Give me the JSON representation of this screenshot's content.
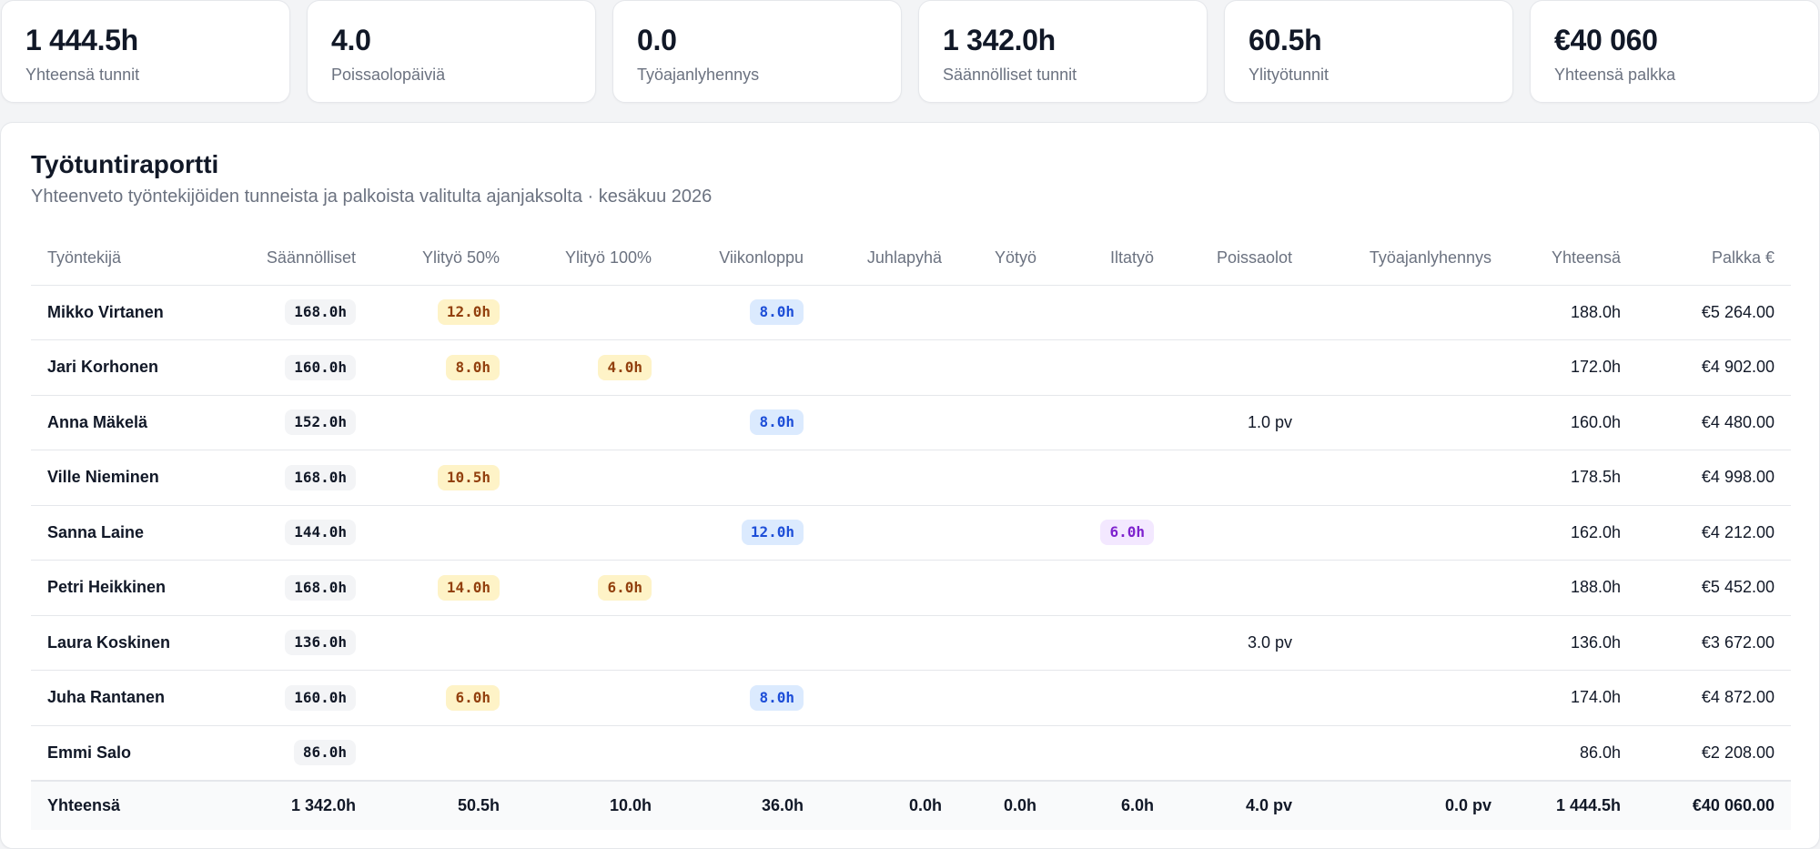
{
  "stats": [
    {
      "value": "1 444.5h",
      "label": "Yhteensä tunnit"
    },
    {
      "value": "4.0",
      "label": "Poissaolopäiviä"
    },
    {
      "value": "0.0",
      "label": "Työajanlyhennys"
    },
    {
      "value": "1 342.0h",
      "label": "Säännölliset tunnit"
    },
    {
      "value": "60.5h",
      "label": "Ylityötunnit"
    },
    {
      "value": "€40 060",
      "label": "Yhteensä palkka"
    }
  ],
  "report": {
    "title": "Työtuntiraportti",
    "subtitle": "Yhteenveto työntekijöiden tunneista ja palkoista valitulta ajanjaksolta · kesäkuu 2026"
  },
  "columns": [
    "Työntekijä",
    "Säännölliset",
    "Ylityö 50%",
    "Ylityö 100%",
    "Viikonloppu",
    "Juhlapyhä",
    "Yötyö",
    "Iltatyö",
    "Poissaolot",
    "Työajanlyhennys",
    "Yhteensä",
    "Palkka €"
  ],
  "rows": [
    {
      "name": "Mikko Virtanen",
      "regular": "168.0h",
      "ot50": "12.0h",
      "ot100": "",
      "weekend": "8.0h",
      "holiday": "",
      "night": "",
      "evening": "",
      "absence": "",
      "reduction": "",
      "total": "188.0h",
      "pay": "€5 264.00"
    },
    {
      "name": "Jari Korhonen",
      "regular": "160.0h",
      "ot50": "8.0h",
      "ot100": "4.0h",
      "weekend": "",
      "holiday": "",
      "night": "",
      "evening": "",
      "absence": "",
      "reduction": "",
      "total": "172.0h",
      "pay": "€4 902.00"
    },
    {
      "name": "Anna Mäkelä",
      "regular": "152.0h",
      "ot50": "",
      "ot100": "",
      "weekend": "8.0h",
      "holiday": "",
      "night": "",
      "evening": "",
      "absence": "1.0 pv",
      "reduction": "",
      "total": "160.0h",
      "pay": "€4 480.00"
    },
    {
      "name": "Ville Nieminen",
      "regular": "168.0h",
      "ot50": "10.5h",
      "ot100": "",
      "weekend": "",
      "holiday": "",
      "night": "",
      "evening": "",
      "absence": "",
      "reduction": "",
      "total": "178.5h",
      "pay": "€4 998.00"
    },
    {
      "name": "Sanna Laine",
      "regular": "144.0h",
      "ot50": "",
      "ot100": "",
      "weekend": "12.0h",
      "holiday": "",
      "night": "",
      "evening": "6.0h",
      "absence": "",
      "reduction": "",
      "total": "162.0h",
      "pay": "€4 212.00"
    },
    {
      "name": "Petri Heikkinen",
      "regular": "168.0h",
      "ot50": "14.0h",
      "ot100": "6.0h",
      "weekend": "",
      "holiday": "",
      "night": "",
      "evening": "",
      "absence": "",
      "reduction": "",
      "total": "188.0h",
      "pay": "€5 452.00"
    },
    {
      "name": "Laura Koskinen",
      "regular": "136.0h",
      "ot50": "",
      "ot100": "",
      "weekend": "",
      "holiday": "",
      "night": "",
      "evening": "",
      "absence": "3.0 pv",
      "reduction": "",
      "total": "136.0h",
      "pay": "€3 672.00"
    },
    {
      "name": "Juha Rantanen",
      "regular": "160.0h",
      "ot50": "6.0h",
      "ot100": "",
      "weekend": "8.0h",
      "holiday": "",
      "night": "",
      "evening": "",
      "absence": "",
      "reduction": "",
      "total": "174.0h",
      "pay": "€4 872.00"
    },
    {
      "name": "Emmi Salo",
      "regular": "86.0h",
      "ot50": "",
      "ot100": "",
      "weekend": "",
      "holiday": "",
      "night": "",
      "evening": "",
      "absence": "",
      "reduction": "",
      "total": "86.0h",
      "pay": "€2 208.00"
    }
  ],
  "totals": {
    "name": "Yhteensä",
    "regular": "1 342.0h",
    "ot50": "50.5h",
    "ot100": "10.0h",
    "weekend": "36.0h",
    "holiday": "0.0h",
    "night": "0.0h",
    "evening": "6.0h",
    "absence": "4.0 pv",
    "reduction": "0.0 pv",
    "total": "1 444.5h",
    "pay": "€40 060.00"
  },
  "colors": {
    "regular_pill_bg": "#f3f4f6",
    "overtime_pill_bg": "#fef3c7",
    "weekend_pill_bg": "#dbeafe",
    "evening_pill_bg": "#f3e8ff"
  }
}
